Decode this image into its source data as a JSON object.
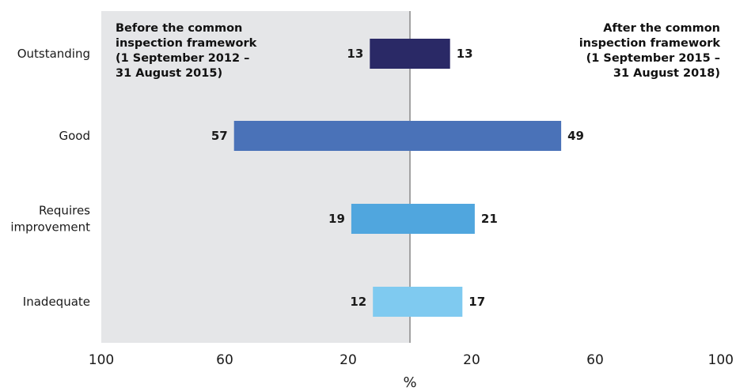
{
  "chart_data": {
    "type": "bar",
    "orientation": "horizontal-diverging",
    "categories": [
      [
        "Outstanding"
      ],
      [
        "Good"
      ],
      [
        "Requires",
        "improvement"
      ],
      [
        "Inadequate"
      ]
    ],
    "series": [
      {
        "name": "Before the common inspection framework (1 September 2012 – 31 August 2015)",
        "side": "left",
        "values": [
          13,
          57,
          19,
          12
        ]
      },
      {
        "name": "After the common inspection framework (1 September 2015 – 31 August 2018)",
        "side": "right",
        "values": [
          13,
          49,
          21,
          17
        ]
      }
    ],
    "panel_labels": {
      "left": [
        "Before the common",
        "inspection framework",
        "(1 September 2012 –",
        "31 August 2015)"
      ],
      "right": [
        "After the common",
        "inspection framework",
        "(1 September 2015 –",
        "31 August 2018)"
      ]
    },
    "xticks_left": [
      "100",
      "60",
      "20"
    ],
    "xticks_right": [
      "20",
      "60",
      "100"
    ],
    "xlabel": "%",
    "xlim": [
      0,
      100
    ],
    "colors": {
      "categories": [
        "#2a2966",
        "#4a72b8",
        "#50a6de",
        "#7fcaf0"
      ],
      "left_panel_bg": "#e5e6e8",
      "axis_line": "#a3a3a3"
    }
  }
}
